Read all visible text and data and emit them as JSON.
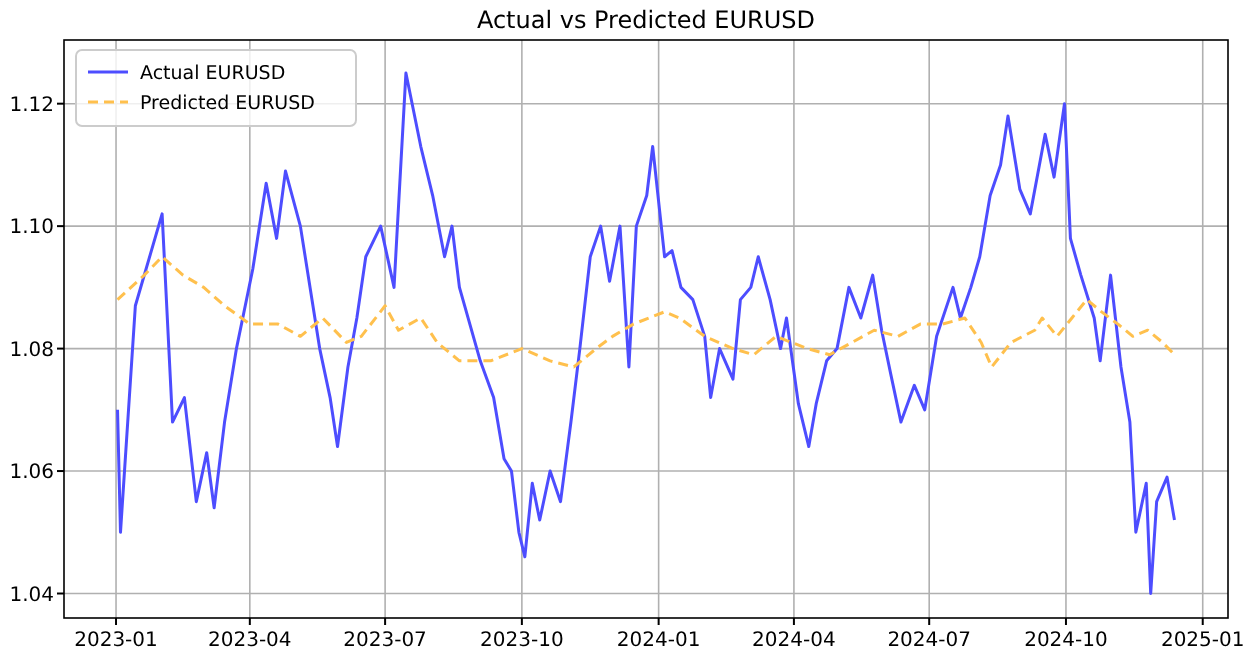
{
  "chart_data": {
    "type": "line",
    "title": "Actual vs Predicted EURUSD",
    "xlim": [
      "2022-11-27",
      "2025-01-18"
    ],
    "ylim": [
      1.036,
      1.1304
    ],
    "xticks": [
      "2023-01",
      "2023-04",
      "2023-07",
      "2023-10",
      "2024-01",
      "2024-04",
      "2024-07",
      "2024-10",
      "2025-01"
    ],
    "yticks": [
      1.04,
      1.06,
      1.08,
      {
        "value": 1.1,
        "label": "1.10"
      },
      1.12
    ],
    "grid": true,
    "legend": "top left",
    "series": [
      {
        "name": "Actual EURUSD",
        "color": "#4d4dff",
        "line_style": "solid",
        "x": [
          "2023-01-02",
          "2023-01-04",
          "2023-01-14",
          "2023-02-01",
          "2023-02-08",
          "2023-02-16",
          "2023-02-24",
          "2023-03-03",
          "2023-03-08",
          "2023-03-15",
          "2023-03-23",
          "2023-04-03",
          "2023-04-12",
          "2023-04-19",
          "2023-04-25",
          "2023-05-05",
          "2023-05-18",
          "2023-05-25",
          "2023-05-30",
          "2023-06-06",
          "2023-06-12",
          "2023-06-18",
          "2023-06-28",
          "2023-07-07",
          "2023-07-15",
          "2023-07-25",
          "2023-08-02",
          "2023-08-10",
          "2023-08-15",
          "2023-08-20",
          "2023-09-03",
          "2023-09-12",
          "2023-09-19",
          "2023-09-24",
          "2023-09-29",
          "2023-10-03",
          "2023-10-08",
          "2023-10-13",
          "2023-10-20",
          "2023-10-27",
          "2023-11-03",
          "2023-11-09",
          "2023-11-16",
          "2023-11-23",
          "2023-11-29",
          "2023-12-06",
          "2023-12-12",
          "2023-12-17",
          "2023-12-24",
          "2023-12-28",
          "2024-01-05",
          "2024-01-10",
          "2024-01-16",
          "2024-01-24",
          "2024-02-01",
          "2024-02-05",
          "2024-02-11",
          "2024-02-20",
          "2024-02-25",
          "2024-03-03",
          "2024-03-08",
          "2024-03-16",
          "2024-03-23",
          "2024-03-27",
          "2024-04-04",
          "2024-04-11",
          "2024-04-16",
          "2024-04-23",
          "2024-04-30",
          "2024-05-08",
          "2024-05-16",
          "2024-05-24",
          "2024-05-30",
          "2024-06-05",
          "2024-06-12",
          "2024-06-21",
          "2024-06-28",
          "2024-07-06",
          "2024-07-17",
          "2024-07-22",
          "2024-07-29",
          "2024-08-04",
          "2024-08-11",
          "2024-08-18",
          "2024-08-23",
          "2024-08-31",
          "2024-09-07",
          "2024-09-17",
          "2024-09-23",
          "2024-09-30",
          "2024-10-04",
          "2024-10-11",
          "2024-10-20",
          "2024-10-24",
          "2024-10-31",
          "2024-11-07",
          "2024-11-13",
          "2024-11-17",
          "2024-11-24",
          "2024-11-27",
          "2024-12-01",
          "2024-12-08",
          "2024-12-13"
        ],
        "values": [
          1.07,
          1.05,
          1.087,
          1.102,
          1.068,
          1.072,
          1.055,
          1.063,
          1.054,
          1.068,
          1.08,
          1.093,
          1.107,
          1.098,
          1.109,
          1.1,
          1.08,
          1.072,
          1.064,
          1.077,
          1.085,
          1.095,
          1.1,
          1.09,
          1.125,
          1.113,
          1.105,
          1.095,
          1.1,
          1.09,
          1.078,
          1.072,
          1.062,
          1.06,
          1.05,
          1.046,
          1.058,
          1.052,
          1.06,
          1.055,
          1.068,
          1.08,
          1.095,
          1.1,
          1.091,
          1.1,
          1.077,
          1.1,
          1.105,
          1.113,
          1.095,
          1.096,
          1.09,
          1.088,
          1.082,
          1.072,
          1.08,
          1.075,
          1.088,
          1.09,
          1.095,
          1.088,
          1.08,
          1.085,
          1.071,
          1.064,
          1.071,
          1.078,
          1.08,
          1.09,
          1.085,
          1.092,
          1.083,
          1.076,
          1.068,
          1.074,
          1.07,
          1.082,
          1.09,
          1.085,
          1.09,
          1.095,
          1.105,
          1.11,
          1.118,
          1.106,
          1.102,
          1.115,
          1.108,
          1.12,
          1.098,
          1.092,
          1.085,
          1.078,
          1.092,
          1.077,
          1.068,
          1.05,
          1.058,
          1.04,
          1.055,
          1.059,
          1.052
        ]
      },
      {
        "name": "Predicted EURUSD",
        "color": "#ffc04d",
        "line_style": "dashed",
        "x": [
          "2023-01-02",
          "2023-01-20",
          "2023-02-01",
          "2023-02-15",
          "2023-03-01",
          "2023-03-15",
          "2023-04-01",
          "2023-04-20",
          "2023-05-05",
          "2023-05-20",
          "2023-06-05",
          "2023-06-15",
          "2023-07-01",
          "2023-07-10",
          "2023-07-25",
          "2023-08-05",
          "2023-08-20",
          "2023-09-10",
          "2023-10-01",
          "2023-10-20",
          "2023-11-05",
          "2023-11-20",
          "2023-12-01",
          "2023-12-15",
          "2024-01-05",
          "2024-01-15",
          "2024-02-01",
          "2024-02-20",
          "2024-03-05",
          "2024-03-20",
          "2024-04-10",
          "2024-04-25",
          "2024-05-10",
          "2024-05-25",
          "2024-06-10",
          "2024-06-25",
          "2024-07-10",
          "2024-07-25",
          "2024-08-05",
          "2024-08-12",
          "2024-08-25",
          "2024-09-10",
          "2024-09-15",
          "2024-09-25",
          "2024-10-05",
          "2024-10-15",
          "2024-10-25",
          "2024-11-05",
          "2024-11-15",
          "2024-11-25",
          "2024-12-05",
          "2024-12-13"
        ],
        "values": [
          1.088,
          1.092,
          1.095,
          1.092,
          1.09,
          1.087,
          1.084,
          1.084,
          1.082,
          1.085,
          1.081,
          1.082,
          1.087,
          1.083,
          1.085,
          1.081,
          1.078,
          1.078,
          1.08,
          1.078,
          1.077,
          1.08,
          1.082,
          1.084,
          1.086,
          1.085,
          1.082,
          1.08,
          1.079,
          1.082,
          1.08,
          1.079,
          1.081,
          1.083,
          1.082,
          1.084,
          1.084,
          1.085,
          1.081,
          1.077,
          1.081,
          1.083,
          1.085,
          1.082,
          1.085,
          1.088,
          1.086,
          1.084,
          1.082,
          1.083,
          1.081,
          1.079
        ]
      }
    ]
  }
}
